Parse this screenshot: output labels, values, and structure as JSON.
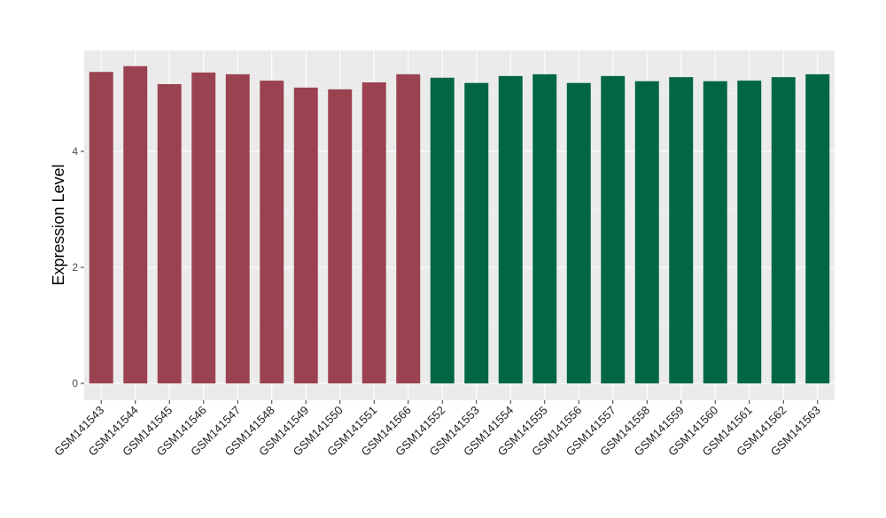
{
  "chart_data": {
    "type": "bar",
    "title": "",
    "xlabel": "",
    "ylabel": "Expression Level",
    "ylim": [
      -0.29,
      5.74
    ],
    "yticks": [
      0,
      2,
      4
    ],
    "grid": true,
    "legend": "none",
    "categories": [
      "GSM141543",
      "GSM141544",
      "GSM141545",
      "GSM141546",
      "GSM141547",
      "GSM141548",
      "GSM141549",
      "GSM141550",
      "GSM141551",
      "GSM141566",
      "GSM141552",
      "GSM141553",
      "GSM141554",
      "GSM141555",
      "GSM141556",
      "GSM141557",
      "GSM141558",
      "GSM141559",
      "GSM141560",
      "GSM141561",
      "GSM141562",
      "GSM141563"
    ],
    "values": [
      5.37,
      5.47,
      5.16,
      5.36,
      5.33,
      5.22,
      5.1,
      5.07,
      5.19,
      5.33,
      5.27,
      5.18,
      5.3,
      5.33,
      5.18,
      5.3,
      5.21,
      5.28,
      5.21,
      5.22,
      5.28,
      5.33
    ],
    "groups": [
      0,
      0,
      0,
      0,
      0,
      0,
      0,
      0,
      0,
      0,
      1,
      1,
      1,
      1,
      1,
      1,
      1,
      1,
      1,
      1,
      1,
      1
    ],
    "colors": [
      "#9b4250",
      "#006644"
    ],
    "panel_background": "#ebebeb"
  }
}
